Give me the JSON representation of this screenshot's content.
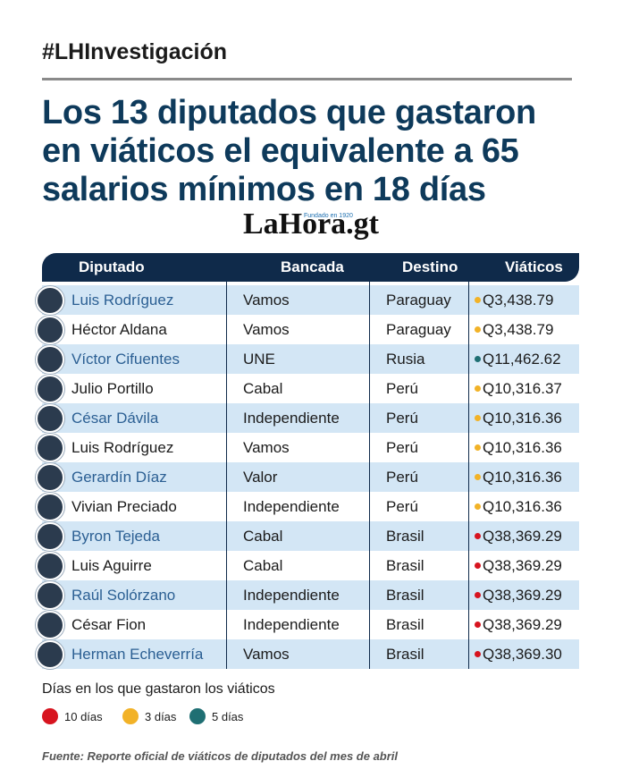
{
  "hashtag": "#LHInvestigación",
  "title": [
    "Los 13 diputados que gastaron",
    "en viáticos el equivalente a 65",
    "salarios mínimos en 18 días"
  ],
  "logo": {
    "text": "LaHora.gt",
    "tagline": "Fundado en 1920"
  },
  "table": {
    "headers": [
      "Diputado",
      "Bancada",
      "Destino",
      "Viáticos"
    ],
    "rows": [
      {
        "cells": [
          "Luis Rodríguez",
          "Vamos",
          "Paraguay",
          "Q3,438.79"
        ],
        "color": "#f2b227"
      },
      {
        "cells": [
          "Héctor Aldana",
          "Vamos",
          "Paraguay",
          "Q3,438.79"
        ],
        "color": "#f2b227"
      },
      {
        "cells": [
          "Víctor Cifuentes",
          "UNE",
          "Rusia",
          "Q11,462.62"
        ],
        "color": "#1f6f73"
      },
      {
        "cells": [
          "Julio Portillo",
          "Cabal",
          "Perú",
          "Q10,316.37"
        ],
        "color": "#f2b227"
      },
      {
        "cells": [
          "César Dávila",
          "Independiente",
          "Perú",
          "Q10,316.36"
        ],
        "color": "#f2b227"
      },
      {
        "cells": [
          "Luis Rodríguez",
          "Vamos",
          "Perú",
          "Q10,316.36"
        ],
        "color": "#f2b227"
      },
      {
        "cells": [
          "Gerardín Díaz",
          "Valor",
          "Perú",
          "Q10,316.36"
        ],
        "color": "#f2b227"
      },
      {
        "cells": [
          "Vivian Preciado",
          "Independiente",
          "Perú",
          "Q10,316.36"
        ],
        "color": "#f2b227"
      },
      {
        "cells": [
          "Byron Tejeda",
          "Cabal",
          "Brasil",
          "Q38,369.29"
        ],
        "color": "#d7141f"
      },
      {
        "cells": [
          "Luis Aguirre",
          "Cabal",
          "Brasil",
          "Q38,369.29"
        ],
        "color": "#d7141f"
      },
      {
        "cells": [
          "Raúl Solórzano",
          "Independiente",
          "Brasil",
          "Q38,369.29"
        ],
        "color": "#d7141f"
      },
      {
        "cells": [
          "César Fion",
          "Independiente",
          "Brasil",
          "Q38,369.29"
        ],
        "color": "#d7141f"
      },
      {
        "cells": [
          "Herman Echeverría",
          "Vamos",
          "Brasil",
          "Q38,369.30"
        ],
        "color": "#d7141f"
      }
    ]
  },
  "legend": {
    "title": "Días en los que gastaron los viáticos",
    "items": [
      {
        "label": "10 días",
        "color": "#d7141f"
      },
      {
        "label": "3 días",
        "color": "#f2b227"
      },
      {
        "label": "5 días",
        "color": "#1f6f73"
      }
    ]
  },
  "source": "Fuente: Reporte oficial de viáticos de diputados del mes de abril"
}
